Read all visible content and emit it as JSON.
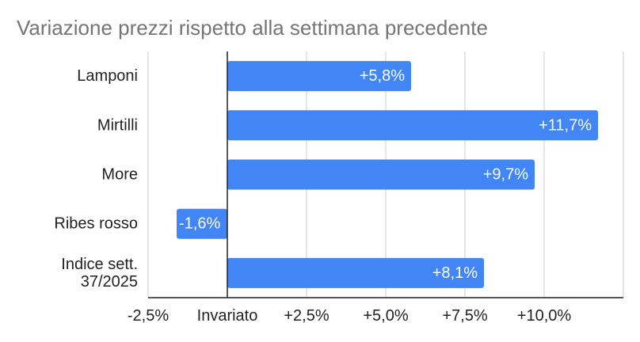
{
  "chart_data": {
    "type": "bar",
    "orientation": "horizontal",
    "title": "Variazione prezzi rispetto alla settimana precedente",
    "categories": [
      [
        "Lamponi"
      ],
      [
        "Mirtilli"
      ],
      [
        "More"
      ],
      [
        "Ribes rosso"
      ],
      [
        "Indice sett.",
        "37/2025"
      ]
    ],
    "values": [
      5.8,
      11.7,
      9.7,
      -1.6,
      8.1
    ],
    "data_labels": [
      "+5,8%",
      "+11,7%",
      "+9,7%",
      "-1,6%",
      "+8,1%"
    ],
    "xlim": [
      -2.5,
      12.5
    ],
    "x_ticks": [
      -2.5,
      0,
      2.5,
      5,
      7.5,
      10
    ],
    "x_tick_labels": [
      "-2,5%",
      "Invariato",
      "+2,5%",
      "+5,0%",
      "+7,5%",
      "+10,0%"
    ],
    "grid": true,
    "legend": "none",
    "colors": {
      "bar": "#4285f4",
      "grid": "#cccccc",
      "axis": "#222222",
      "title": "#757575"
    }
  }
}
